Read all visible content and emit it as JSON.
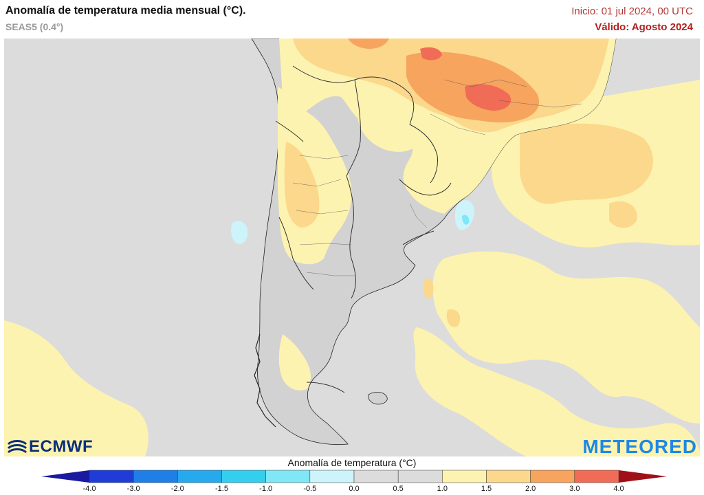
{
  "header": {
    "title": "Anomalía de temperatura media mensual (°C).",
    "subtitle": "SEAS5 (0.4°)",
    "init": "Inicio: 01 jul 2024, 00 UTC",
    "valid": "Válido: Agosto 2024"
  },
  "legend": {
    "title": "Anomalía de temperatura (°C)",
    "ticks": [
      "-4.0",
      "-3.0",
      "-2.0",
      "-1.5",
      "-1.0",
      "-0.5",
      "0.0",
      "0.5",
      "1.0",
      "1.5",
      "2.0",
      "3.0",
      "4.0"
    ],
    "bins": [
      {
        "label": "-4.0 a -3.0",
        "color": "#1f3dd6"
      },
      {
        "label": "-3.0 a -2.0",
        "color": "#1f7fe6"
      },
      {
        "label": "-2.0 a -1.5",
        "color": "#27a9ee"
      },
      {
        "label": "-1.5 a -1.0",
        "color": "#34cfee"
      },
      {
        "label": "-1.0 a -0.5",
        "color": "#7fe7f6"
      },
      {
        "label": "-0.5 a 0.0",
        "color": "#cdf3fb"
      },
      {
        "label": "0.0 a 0.5",
        "color": "#dcdcdc"
      },
      {
        "label": "0.5 a 1.0",
        "color": "#dcdcdc"
      },
      {
        "label": "1.0 a 1.5",
        "color": "#fdf3b0"
      },
      {
        "label": "1.5 a 2.0",
        "color": "#fbd88c"
      },
      {
        "label": "2.0 a 3.0",
        "color": "#f6a45e"
      },
      {
        "label": "3.0 a 4.0",
        "color": "#f06c56"
      },
      {
        "label": "4.0+",
        "color": "#e52330"
      }
    ],
    "low_arrow_color": "#1a1aa0",
    "high_arrow_color": "#a01018"
  },
  "map": {
    "ocean_color": "#dcdcdc",
    "land_color": "#d6d6d6",
    "border_color": "#333333"
  },
  "logos": {
    "left": "ECMWF",
    "right": "METEORED"
  }
}
